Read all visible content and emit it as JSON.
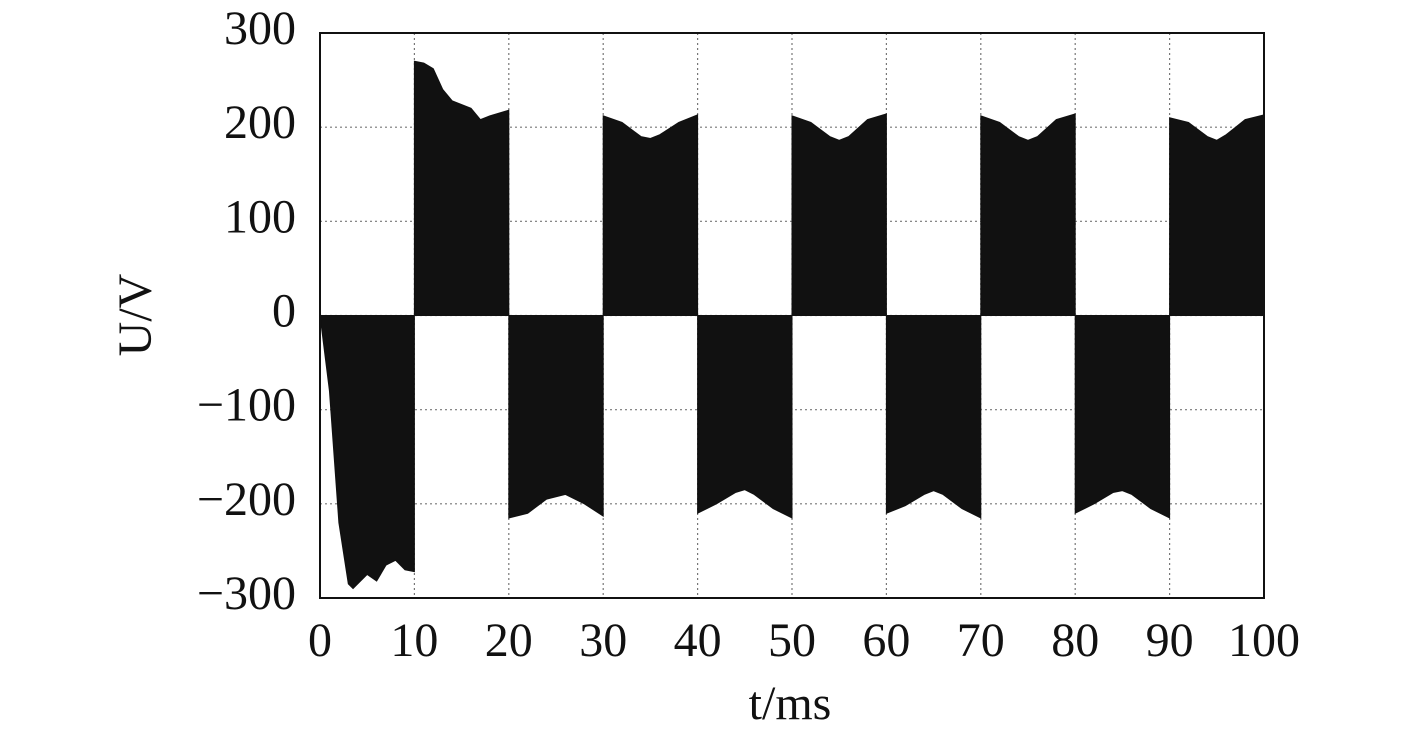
{
  "chart_data": {
    "type": "area",
    "x_label": "t/ms",
    "y_label": "U/V",
    "color": "#111111",
    "x": [
      0,
      1,
      2,
      3,
      3.5,
      5,
      6,
      7,
      8,
      9,
      10,
      10,
      11,
      12,
      13,
      14,
      16,
      17,
      18,
      20,
      20,
      22,
      24,
      26,
      28,
      30,
      30,
      32,
      34,
      35,
      36,
      38,
      40,
      40,
      42,
      44,
      45,
      46,
      48,
      50,
      50,
      52,
      54,
      55,
      56,
      58,
      60,
      60,
      62,
      64,
      65,
      66,
      68,
      70,
      70,
      72,
      74,
      75,
      76,
      78,
      80,
      80,
      82,
      84,
      85,
      86,
      88,
      90,
      90,
      92,
      94,
      95,
      96,
      98,
      100
    ],
    "values": [
      0,
      -80,
      -220,
      -285,
      -290,
      -275,
      -282,
      -265,
      -260,
      -270,
      -272,
      270,
      268,
      262,
      240,
      228,
      220,
      208,
      212,
      218,
      -215,
      -210,
      -195,
      -190,
      -200,
      -213,
      212,
      205,
      190,
      188,
      192,
      205,
      213,
      -210,
      -200,
      -188,
      -185,
      -190,
      -205,
      -215,
      212,
      205,
      190,
      186,
      190,
      208,
      214,
      -210,
      -202,
      -190,
      -186,
      -190,
      -205,
      -215,
      212,
      205,
      190,
      186,
      190,
      208,
      214,
      -210,
      -200,
      -188,
      -186,
      -190,
      -205,
      -215,
      210,
      205,
      190,
      186,
      192,
      208,
      213
    ],
    "xlim": [
      0,
      100
    ],
    "xticks": [
      0,
      10,
      20,
      30,
      40,
      50,
      60,
      70,
      80,
      90,
      100
    ],
    "ylim": [
      -300,
      300
    ],
    "yticks": [
      {
        "value": -300,
        "label": "−300"
      },
      {
        "value": -200,
        "label": "−200"
      },
      {
        "value": -100,
        "label": "−100"
      },
      0,
      100,
      200,
      300
    ],
    "grid": true
  }
}
